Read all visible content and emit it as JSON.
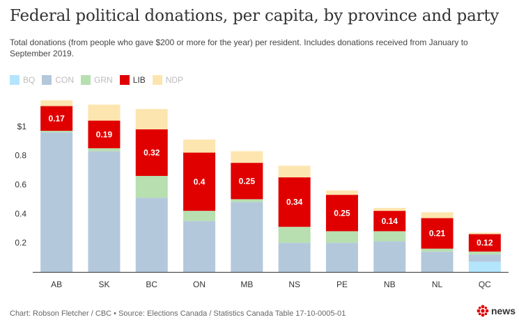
{
  "title": "Federal political donations, per capita, by province and party",
  "subtitle": "Total donations (from people who gave $200 or more for the year) per resident. Includes donations received from January to September 2019.",
  "legend": [
    {
      "key": "BQ",
      "label": "BQ",
      "color": "#b3e5fc",
      "active": false
    },
    {
      "key": "CON",
      "label": "CON",
      "color": "#b4c8dc",
      "active": false
    },
    {
      "key": "GRN",
      "label": "GRN",
      "color": "#b7dfb0",
      "active": false
    },
    {
      "key": "LIB",
      "label": "LIB",
      "color": "#e00000",
      "active": true
    },
    {
      "key": "NDP",
      "label": "NDP",
      "color": "#fde5b0",
      "active": false
    }
  ],
  "chart_data": {
    "type": "bar",
    "stacked": true,
    "categories": [
      "AB",
      "SK",
      "BC",
      "ON",
      "MB",
      "NS",
      "PE",
      "NB",
      "NL",
      "QC"
    ],
    "series": [
      {
        "name": "BQ",
        "color": "#b3e5fc",
        "values": [
          0,
          0,
          0,
          0,
          0,
          0,
          0,
          0,
          0,
          0.07
        ]
      },
      {
        "name": "CON",
        "color": "#b4c8dc",
        "values": [
          0.96,
          0.83,
          0.51,
          0.35,
          0.48,
          0.2,
          0.2,
          0.21,
          0.14,
          0.05
        ]
      },
      {
        "name": "GRN",
        "color": "#b7dfb0",
        "values": [
          0.01,
          0.02,
          0.15,
          0.07,
          0.02,
          0.11,
          0.08,
          0.07,
          0.02,
          0.02
        ]
      },
      {
        "name": "LIB",
        "color": "#e00000",
        "values": [
          0.17,
          0.19,
          0.32,
          0.4,
          0.25,
          0.34,
          0.25,
          0.14,
          0.21,
          0.12
        ]
      },
      {
        "name": "NDP",
        "color": "#fde5b0",
        "values": [
          0.04,
          0.11,
          0.14,
          0.09,
          0.08,
          0.08,
          0.03,
          0.02,
          0.04,
          0.01
        ]
      }
    ],
    "data_labels": [
      "0.17",
      "0.19",
      "0.32",
      "0.4",
      "0.25",
      "0.34",
      "0.25",
      "0.14",
      "0.21",
      "0.12"
    ],
    "y_ticks": [
      {
        "value": 0.2,
        "label": "0.2"
      },
      {
        "value": 0.4,
        "label": "0.4"
      },
      {
        "value": 0.6,
        "label": "0.6"
      },
      {
        "value": 0.8,
        "label": "0.8"
      },
      {
        "value": 1.0,
        "label": "$1"
      }
    ],
    "ylim": [
      0,
      1.2
    ],
    "grid": false,
    "legend_position": "top-left"
  },
  "footer": "Chart: Robson Fletcher / CBC • Source: Elections Canada / Statistics Canada Table 17-10-0005-01",
  "brand": {
    "text": "news",
    "logo_color": "#e00000"
  }
}
